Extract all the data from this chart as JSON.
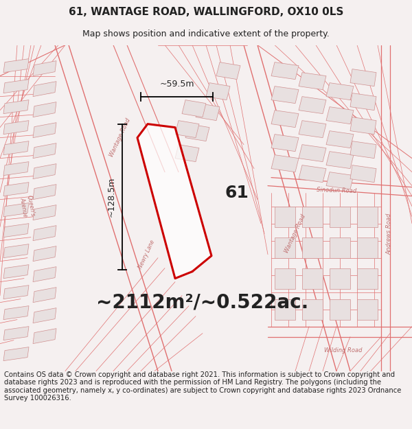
{
  "title": "61, WANTAGE ROAD, WALLINGFORD, OX10 0LS",
  "subtitle": "Map shows position and indicative extent of the property.",
  "area_text": "~2112m²/~0.522ac.",
  "width_label": "~59.5m",
  "height_label": "~128.5m",
  "number_label": "61",
  "footer": "Contains OS data © Crown copyright and database right 2021. This information is subject to Crown copyright and database rights 2023 and is reproduced with the permission of HM Land Registry. The polygons (including the associated geometry, namely x, y co-ordinates) are subject to Crown copyright and database rights 2023 Ordnance Survey 100026316.",
  "bg_color": "#f5f0f0",
  "map_bg": "#ffffff",
  "road_color": "#e8a0a0",
  "highlight_color": "#cc0000",
  "text_color": "#222222",
  "map_line_color": "#e07070",
  "bldg_fill": "#e8e0e0",
  "bldg_edge": "#d09090",
  "title_fontsize": 11,
  "subtitle_fontsize": 9,
  "area_fontsize": 20,
  "label_fontsize": 9,
  "footer_fontsize": 7.2,
  "road_label_color": "#c07070",
  "road_label_size": 6
}
